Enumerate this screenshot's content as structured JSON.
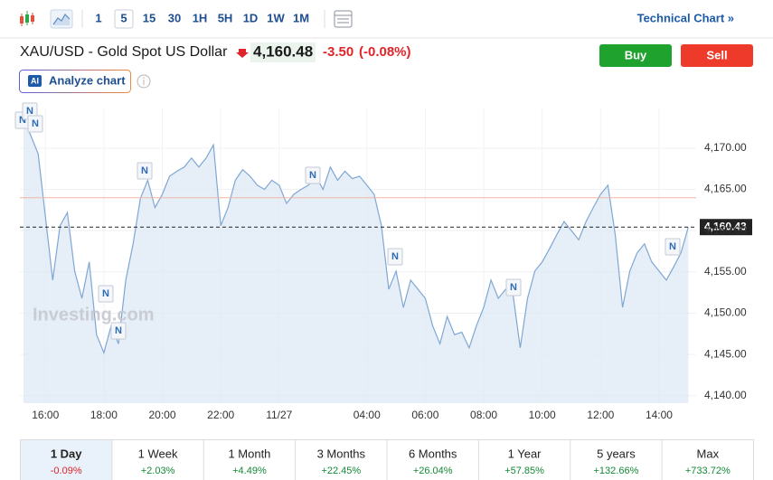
{
  "toolbar": {
    "intervals": [
      "1",
      "5",
      "15",
      "30",
      "1H",
      "5H",
      "1D",
      "1W",
      "1M"
    ],
    "technical_chart": "Technical Chart »"
  },
  "header": {
    "symbol": "XAU/USD - Gold Spot US Dollar",
    "price": "4,160.48",
    "change": "-3.50",
    "change_pct": "(-0.08%)",
    "buy": "Buy",
    "sell": "Sell",
    "ai_badge": "AI",
    "analyze": "Analyze chart"
  },
  "chart_data": {
    "type": "area",
    "watermark": "Investing.com",
    "news_label": "N",
    "categories": [
      null,
      null,
      null,
      "16:00",
      null,
      null,
      null,
      null,
      null,
      null,
      null,
      "18:00",
      null,
      null,
      null,
      null,
      null,
      null,
      null,
      "20:00",
      null,
      null,
      null,
      null,
      null,
      null,
      null,
      "22:00",
      null,
      null,
      null,
      null,
      null,
      null,
      null,
      "11/27",
      null,
      null,
      null,
      null,
      null,
      null,
      null,
      null,
      null,
      null,
      null,
      "04:00",
      null,
      null,
      null,
      null,
      null,
      null,
      null,
      "06:00",
      null,
      null,
      null,
      null,
      null,
      null,
      null,
      "08:00",
      null,
      null,
      null,
      null,
      null,
      null,
      null,
      "10:00",
      null,
      null,
      null,
      null,
      null,
      null,
      null,
      "12:00",
      null,
      null,
      null,
      null,
      null,
      null,
      null,
      "14:00",
      null,
      null,
      null,
      null
    ],
    "series": [
      {
        "name": "XAU/USD",
        "color": "#7fa7d4",
        "values": [
          4173.7,
          4171.5,
          4169.3,
          4161.7,
          4154.0,
          4160.6,
          4162.2,
          4155.1,
          4151.8,
          4156.2,
          4147.4,
          4145.2,
          4148.5,
          4146.3,
          4154.0,
          4158.4,
          4163.9,
          4166.1,
          4162.8,
          4164.4,
          4166.6,
          4167.2,
          4167.7,
          4168.8,
          4167.7,
          4168.8,
          4170.4,
          4160.6,
          4162.8,
          4166.1,
          4167.4,
          4166.6,
          4165.5,
          4165.0,
          4166.1,
          4165.5,
          4163.3,
          4164.4,
          4165.0,
          4165.5,
          4166.6,
          4165.0,
          4167.7,
          4166.1,
          4167.2,
          4166.3,
          4166.6,
          4165.5,
          4164.4,
          4160.6,
          4152.9,
          4155.1,
          4150.7,
          4154.0,
          4152.9,
          4151.8,
          4148.5,
          4146.3,
          4149.6,
          4147.4,
          4147.7,
          4145.8,
          4148.5,
          4150.7,
          4154.0,
          4151.8,
          4152.9,
          4152.3,
          4145.8,
          4151.8,
          4155.1,
          4156.2,
          4157.8,
          4159.5,
          4161.1,
          4160.0,
          4158.9,
          4161.1,
          4162.8,
          4164.4,
          4165.5,
          4159.5,
          4150.7,
          4155.1,
          4157.3,
          4158.4,
          4156.2,
          4155.1,
          4154.0,
          4155.6,
          4157.3,
          4160.43
        ]
      }
    ],
    "last_price": {
      "value": 4160.43,
      "label": "4,160.43"
    },
    "prev_close": 4163.98,
    "ylim": [
      4139.1,
      4174.8
    ],
    "yticks": [
      {
        "value": 4140,
        "label": "4,140.00"
      },
      {
        "value": 4145,
        "label": "4,145.00"
      },
      {
        "value": 4150,
        "label": "4,150.00"
      },
      {
        "value": 4155,
        "label": "4,155.00"
      },
      {
        "value": 4160,
        "label": "4,160.00"
      },
      {
        "value": 4165,
        "label": "4,165.00"
      },
      {
        "value": 4170,
        "label": "4,170.00"
      }
    ],
    "grid": true
  },
  "performance": [
    {
      "period": "1 Day",
      "change": "-0.09%"
    },
    {
      "period": "1 Week",
      "change": "+2.03%"
    },
    {
      "period": "1 Month",
      "change": "+4.49%"
    },
    {
      "period": "3 Months",
      "change": "+22.45%"
    },
    {
      "period": "6 Months",
      "change": "+26.04%"
    },
    {
      "period": "1 Year",
      "change": "+57.85%"
    },
    {
      "period": "5 years",
      "change": "+132.66%"
    },
    {
      "period": "Max",
      "change": "+733.72%"
    }
  ]
}
